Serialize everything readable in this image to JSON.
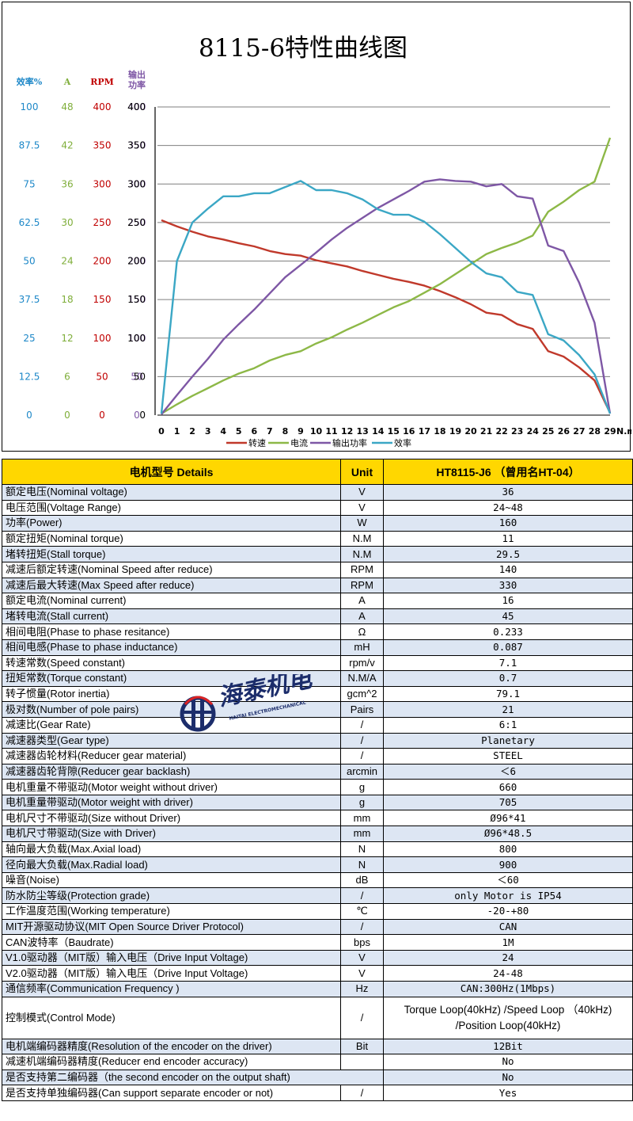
{
  "chart_data": {
    "type": "line",
    "title": "8115-6特性曲线图",
    "xlabel": "N.m",
    "x": [
      0,
      1,
      2,
      3,
      4,
      5,
      6,
      7,
      8,
      9,
      10,
      11,
      12,
      13,
      14,
      15,
      16,
      17,
      18,
      19,
      20,
      21,
      22,
      23,
      24,
      25,
      26,
      27,
      28,
      29
    ],
    "ylim": [
      0,
      400
    ],
    "yticks": [
      0,
      50,
      100,
      150,
      200,
      250,
      300,
      350,
      400
    ],
    "grid": true,
    "legend_position": "bottom",
    "series": [
      {
        "name": "转速",
        "color": "#c0392b",
        "values": [
          253,
          245,
          238,
          232,
          228,
          223,
          219,
          213,
          209,
          207,
          201,
          197,
          193,
          187,
          182,
          177,
          173,
          168,
          161,
          153,
          144,
          133,
          130,
          118,
          112,
          83,
          76,
          62,
          45,
          3
        ]
      },
      {
        "name": "电流",
        "color": "#8db847",
        "values": [
          2,
          14,
          25,
          35,
          45,
          54,
          61,
          71,
          78,
          83,
          93,
          101,
          111,
          120,
          130,
          140,
          148,
          159,
          170,
          183,
          196,
          209,
          217,
          224,
          233,
          264,
          277,
          292,
          303,
          360
        ]
      },
      {
        "name": "输出功率",
        "color": "#7e57a5",
        "values": [
          1,
          26,
          50,
          73,
          98,
          118,
          137,
          158,
          179,
          195,
          211,
          228,
          243,
          256,
          269,
          280,
          291,
          303,
          306,
          304,
          303,
          297,
          300,
          284,
          281,
          220,
          213,
          172,
          120,
          2
        ]
      },
      {
        "name": "效率",
        "color": "#3ba7c5",
        "values": [
          2,
          200,
          250,
          268,
          284,
          284,
          288,
          288,
          296,
          304,
          292,
          292,
          288,
          280,
          267,
          260,
          260,
          251,
          235,
          217,
          199,
          184,
          179,
          160,
          156,
          105,
          97,
          78,
          53,
          2
        ]
      }
    ],
    "scales": [
      {
        "title": "效率%",
        "color": "#1e88c8",
        "labels": [
          "100",
          "87.5",
          "75",
          "62.5",
          "50",
          "37.5",
          "25",
          "12.5",
          "0"
        ]
      },
      {
        "title": "A",
        "color": "#7fae3a",
        "labels": [
          "48",
          "42",
          "36",
          "30",
          "24",
          "18",
          "12",
          "6",
          "0"
        ]
      },
      {
        "title": "RPM",
        "color": "#c00000",
        "labels": [
          "400",
          "350",
          "300",
          "250",
          "200",
          "150",
          "100",
          "50",
          "0"
        ]
      },
      {
        "title": "输出功率",
        "color": "#7e57a5",
        "labels": [
          "400",
          "350",
          "300",
          "250",
          "200",
          "150",
          "100",
          "50",
          "0"
        ]
      }
    ]
  },
  "watermark": {
    "brand": "海泰机电",
    "sub": "HAITAI ELECTROMECHANICAL"
  },
  "table": {
    "header": {
      "name": "电机型号     Details",
      "unit": "Unit",
      "value": "HT8115-J6 （曾用名HT-04）"
    },
    "rows": [
      {
        "name": "额定电压(Nominal voltage)",
        "unit": "V",
        "value": "36"
      },
      {
        "name": "电压范围(Voltage Range)",
        "unit": "V",
        "value": "24~48"
      },
      {
        "name": "功率(Power)",
        "unit": "W",
        "value": "160"
      },
      {
        "name": "额定扭矩(Nominal torque)",
        "unit": "N.M",
        "value": "11"
      },
      {
        "name": "堵转扭矩(Stall torque)",
        "unit": "N.M",
        "value": "29.5"
      },
      {
        "name": "减速后额定转速(Nominal Speed after reduce)",
        "unit": "RPM",
        "value": "140"
      },
      {
        "name": "减速后最大转速(Max Speed after reduce)",
        "unit": "RPM",
        "value": "330"
      },
      {
        "name": "额定电流(Nominal current)",
        "unit": "A",
        "value": "16"
      },
      {
        "name": "堵转电流(Stall current)",
        "unit": "A",
        "value": "45"
      },
      {
        "name": "相间电阻(Phase to phase resitance)",
        "unit": "Ω",
        "value": "0.233"
      },
      {
        "name": "相间电感(Phase to phase inductance)",
        "unit": "mH",
        "value": "0.087"
      },
      {
        "name": "转速常数(Speed constant)",
        "unit": "rpm/v",
        "value": "7.1"
      },
      {
        "name": "扭矩常数(Torque constant)",
        "unit": "N.M/A",
        "value": "0.7"
      },
      {
        "name": "转子惯量(Rotor inertia)",
        "unit": "gcm^2",
        "value": "79.1"
      },
      {
        "name": "极对数(Number of pole pairs)",
        "unit": "Pairs",
        "value": "21"
      },
      {
        "name": "减速比(Gear Rate)",
        "unit": "/",
        "value": "6:1"
      },
      {
        "name": "减速器类型(Gear type)",
        "unit": "/",
        "value": "Planetary"
      },
      {
        "name": "减速器齿轮材料(Reducer gear material)",
        "unit": "/",
        "value": "STEEL"
      },
      {
        "name": "减速器齿轮背隙(Reducer gear backlash)",
        "unit": "arcmin",
        "value": "＜6"
      },
      {
        "name": "电机重量不带驱动(Motor weight without driver)",
        "unit": "g",
        "value": "660"
      },
      {
        "name": "电机重量带驱动(Motor weight with driver)",
        "unit": "g",
        "value": "705"
      },
      {
        "name": "电机尺寸不带驱动(Size without Driver)",
        "unit": "mm",
        "value": "Ø96*41"
      },
      {
        "name": "电机尺寸带驱动(Size with Driver)",
        "unit": "mm",
        "value": "Ø96*48.5"
      },
      {
        "name": "轴向最大负载(Max.Axial load)",
        "unit": "N",
        "value": "800"
      },
      {
        "name": "径向最大负载(Max.Radial load)",
        "unit": "N",
        "value": "900"
      },
      {
        "name": "噪音(Noise)",
        "unit": "dB",
        "value": "＜60"
      },
      {
        "name": "防水防尘等级(Protection grade)",
        "unit": "/",
        "value": "only Motor is IP54"
      },
      {
        "name": "工作温度范围(Working temperature)",
        "unit": "℃",
        "value": "-20-+80"
      },
      {
        "name": "MIT开源驱动协议(MIT Open Source Driver Protocol)",
        "unit": "/",
        "value": "CAN"
      },
      {
        "name": "CAN波特率（Baudrate)",
        "unit": "bps",
        "value": "1M"
      },
      {
        "name": "V1.0驱动器（MIT版）输入电压（Drive Input Voltage)",
        "unit": "V",
        "value": "24"
      },
      {
        "name": "V2.0驱动器（MIT版）输入电压（Drive Input Voltage)",
        "unit": "V",
        "value": "24-48"
      },
      {
        "name": "通信频率(Communication Frequency )",
        "unit": "Hz",
        "value": "CAN:300Hz(1Mbps)"
      },
      {
        "name": "控制模式(Control Mode)",
        "unit": "/",
        "value": "Torque Loop(40kHz) /Speed Loop （40kHz) /Position Loop(40kHz)",
        "tall": true
      },
      {
        "name": "电机端编码器精度(Resolution of the encoder on the driver)",
        "unit": "Bit",
        "value": "12Bit"
      },
      {
        "name": "减速机端编码器精度(Reducer end encoder accuracy)",
        "unit": "",
        "value": "No"
      },
      {
        "name": "是否支持第二编码器（the second encoder on the output shaft)",
        "unit": "",
        "value": "No",
        "merged": true
      },
      {
        "name": "是否支持单独编码器(Can support separate encoder or not)",
        "unit": "/",
        "value": "Yes"
      }
    ]
  }
}
